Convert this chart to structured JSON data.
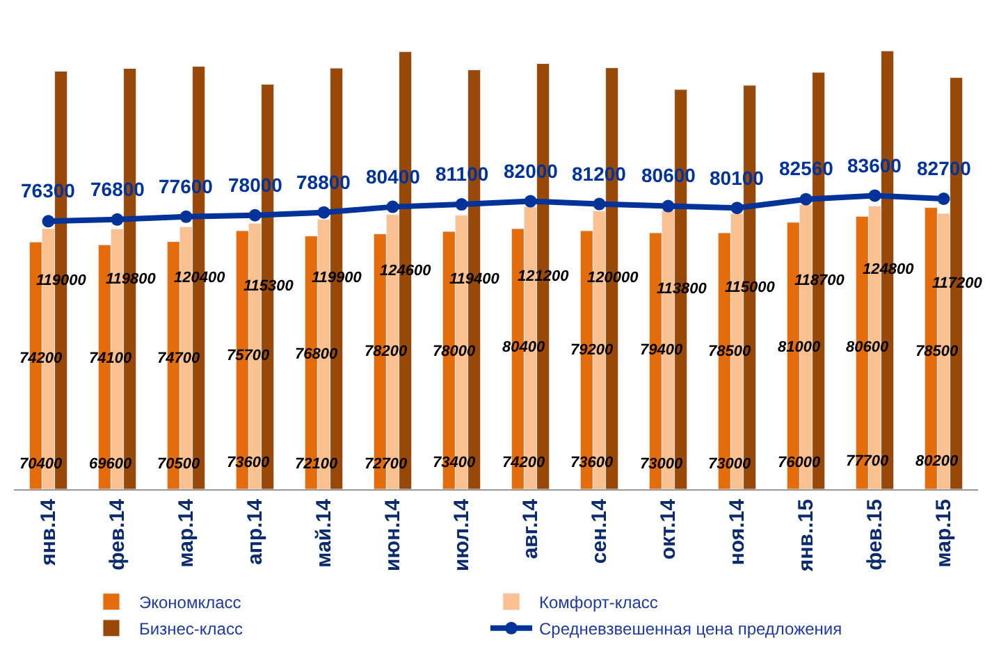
{
  "chart_data": {
    "type": "bar",
    "categories": [
      "янв.14",
      "фев.14",
      "мар.14",
      "апр.14",
      "май.14",
      "июн.14",
      "июл.14",
      "авг.14",
      "сен.14",
      "окт.14",
      "ноя.14",
      "янв..15",
      "фев.15",
      "мар.15"
    ],
    "series": [
      {
        "name": "Экономкласс",
        "color": "#e46c0a",
        "values": [
          70400,
          69600,
          70500,
          73600,
          72100,
          72700,
          73400,
          74200,
          73600,
          73000,
          73000,
          76000,
          77700,
          80200
        ]
      },
      {
        "name": "Комфорт-класс",
        "color": "#fac090",
        "values": [
          74200,
          74100,
          74700,
          75700,
          76800,
          78200,
          78000,
          80400,
          79200,
          79400,
          78500,
          81000,
          80600,
          78500
        ]
      },
      {
        "name": "Бизнес-класс",
        "color": "#984807",
        "values": [
          119000,
          119800,
          120400,
          115300,
          119900,
          124600,
          119400,
          121200,
          120000,
          113800,
          115000,
          118700,
          124800,
          117200
        ]
      },
      {
        "name": "Средневзвешенная цена предложения",
        "color": "#003399",
        "type": "line",
        "values": [
          76300,
          76800,
          77600,
          78000,
          78800,
          80400,
          81100,
          82000,
          81200,
          80600,
          80100,
          82560,
          83600,
          82700
        ]
      }
    ],
    "data_labels": true,
    "marker": "circle",
    "legend": "bottom"
  }
}
